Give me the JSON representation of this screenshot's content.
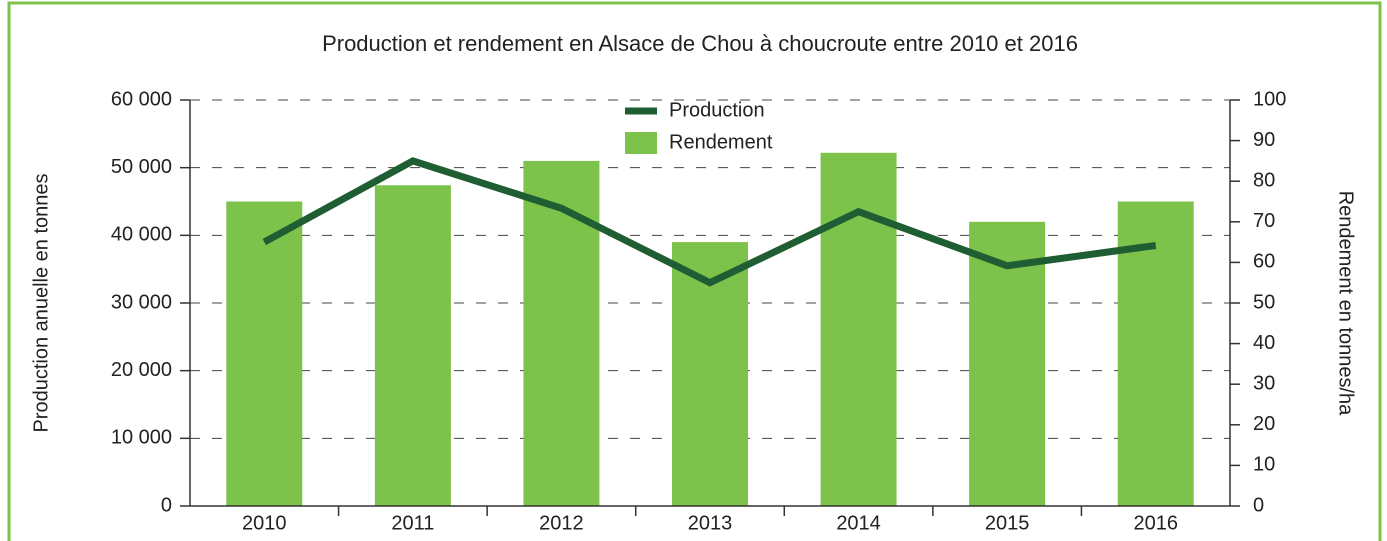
{
  "chart_data": {
    "type": "bar-line",
    "title": "Production et rendement en Alsace de Chou à choucroute entre 2010 et 2016",
    "ylabel": "Production anuelle en tonnes",
    "y2label": "Rendement en tonnes/ha",
    "categories": [
      "2010",
      "2011",
      "2012",
      "2013",
      "2014",
      "2015",
      "2016"
    ],
    "series": [
      {
        "name": "Production",
        "type": "line",
        "color": "#1e5e32",
        "axis": "y",
        "values": [
          39000,
          51000,
          44000,
          33000,
          43500,
          35500,
          38500
        ]
      },
      {
        "name": "Rendement",
        "type": "bar",
        "color": "#7dc24b",
        "axis": "y2",
        "values": [
          75,
          79,
          85,
          65,
          87,
          70,
          75
        ]
      }
    ],
    "ylim": [
      0,
      60000
    ],
    "yticks": [
      0,
      {
        "value": 10000,
        "label": "10 000"
      },
      {
        "value": 20000,
        "label": "20 000"
      },
      {
        "value": 30000,
        "label": "30 000"
      },
      {
        "value": 40000,
        "label": "40 000"
      },
      {
        "value": 50000,
        "label": "50 000"
      },
      {
        "value": 60000,
        "label": "60 000"
      }
    ],
    "y2lim": [
      0,
      100
    ],
    "y2ticks": [
      0,
      10,
      20,
      30,
      40,
      50,
      60,
      70,
      80,
      90,
      100
    ],
    "grid": true
  }
}
